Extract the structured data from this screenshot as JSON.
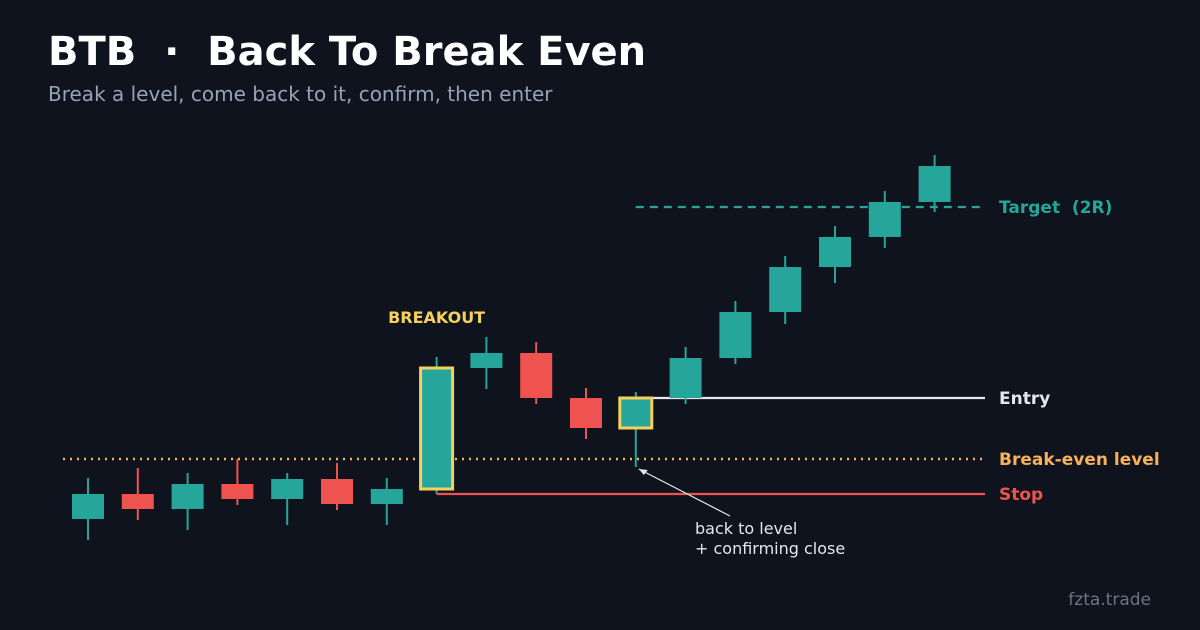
{
  "chart_data": {
    "type": "candlestick",
    "title": "BTB  ·  Back To Break Even",
    "subtitle": "Break a level, come back to it, confirm, then enter",
    "categories": [
      null,
      null,
      null,
      null,
      null,
      null,
      null,
      null,
      null,
      null,
      null,
      null,
      null,
      null,
      null,
      null,
      null,
      null
    ],
    "open": [
      10.25,
      16.5,
      12.75,
      19,
      15.25,
      20.25,
      14,
      17.75,
      48,
      51.75,
      40.5,
      33,
      40.5,
      50.5,
      62,
      73.25,
      80.75,
      89.5
    ],
    "close": [
      16.5,
      12.75,
      19,
      15.25,
      20.25,
      14,
      17.75,
      48,
      51.75,
      40.5,
      33,
      40.5,
      50.5,
      62,
      73.25,
      80.75,
      89.5,
      98.5
    ],
    "high": [
      20.5,
      23,
      21.75,
      25.25,
      21.75,
      24.25,
      20.5,
      50.75,
      55.75,
      54.5,
      43,
      42,
      53.25,
      64.75,
      76,
      83.5,
      92.25,
      101.25
    ],
    "low": [
      5,
      10,
      7.5,
      13.75,
      8.75,
      12.5,
      8.75,
      16.5,
      42.75,
      39,
      30.25,
      23.25,
      39,
      49,
      59,
      69.25,
      78,
      87
    ],
    "up_color": "#26a69a",
    "down_color": "#ef5350",
    "ylim": [
      0,
      105
    ],
    "levels": [
      {
        "name": "Target  (2R)",
        "value": 88.25,
        "color": "#26a69a",
        "style": "dashed"
      },
      {
        "name": "Entry",
        "value": 40.5,
        "color": "#e5e7eb",
        "style": "solid"
      },
      {
        "name": "Break-even level",
        "value": 25.25,
        "color": "#f6b15a",
        "style": "dotted"
      },
      {
        "name": "Stop",
        "value": 16.5,
        "color": "#ef5350",
        "style": "solid"
      }
    ],
    "annotations": {
      "breakout": "BREAKOUT",
      "retest": [
        "back to level",
        "+ confirming close"
      ]
    },
    "watermark": "fzta.trade"
  }
}
